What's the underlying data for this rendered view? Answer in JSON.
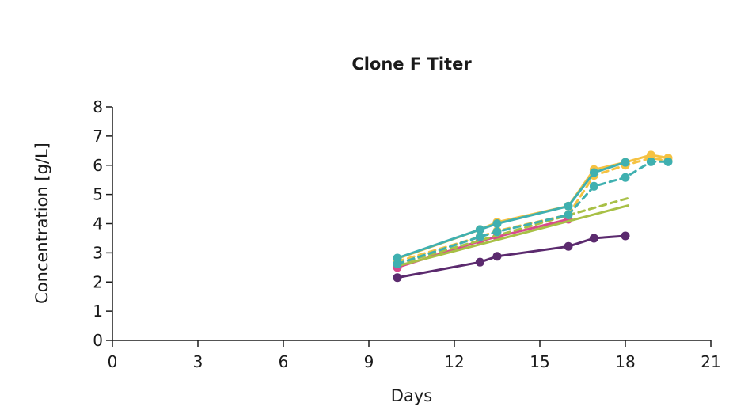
{
  "chart_data": {
    "type": "line",
    "title": "Clone F Titer",
    "xlabel": "Days",
    "ylabel": "Concentration [g/L]",
    "xlim": [
      0,
      21
    ],
    "ylim": [
      0,
      8
    ],
    "xticks": [
      "0",
      "3",
      "6",
      "9",
      "12",
      "15",
      "18",
      "21"
    ],
    "yticks": [
      "0",
      "1",
      "2",
      "3",
      "4",
      "5",
      "6",
      "7",
      "8"
    ],
    "grid": false,
    "legend": "none",
    "series": [
      {
        "color": "#5b2a6e",
        "dash": false,
        "markers": true,
        "x": [
          10,
          12.9,
          13.5,
          16,
          16.9,
          18
        ],
        "y": [
          2.15,
          2.68,
          2.88,
          3.22,
          3.5,
          3.58
        ]
      },
      {
        "color": "#d94a8c",
        "dash": false,
        "markers": true,
        "x": [
          10,
          12.9,
          13.5,
          16
        ],
        "y": [
          2.5,
          3.4,
          3.55,
          4.15
        ]
      },
      {
        "color": "#a8c046",
        "dash": false,
        "markers": false,
        "x": [
          10,
          18.1
        ],
        "y": [
          2.55,
          4.62
        ]
      },
      {
        "color": "#a8c046",
        "dash": true,
        "markers": false,
        "x": [
          10,
          18.2
        ],
        "y": [
          2.62,
          4.9
        ]
      },
      {
        "color": "#f5c242",
        "dash": false,
        "markers": true,
        "x": [
          10,
          12.9,
          13.5,
          16,
          16.9,
          18,
          18.9,
          19.5
        ],
        "y": [
          2.8,
          3.8,
          4.05,
          4.6,
          5.85,
          6.1,
          6.35,
          6.25
        ]
      },
      {
        "color": "#f5c242",
        "dash": true,
        "markers": true,
        "x": [
          10,
          12.9,
          13.5,
          16,
          16.9,
          18,
          18.9,
          19.5
        ],
        "y": [
          2.7,
          3.55,
          3.75,
          4.3,
          5.65,
          6.0,
          6.25,
          6.15
        ]
      },
      {
        "color": "#3fb0b0",
        "dash": false,
        "markers": true,
        "x": [
          10,
          12.9,
          13.5,
          16,
          16.9,
          18
        ],
        "y": [
          2.82,
          3.8,
          4.0,
          4.6,
          5.75,
          6.1
        ]
      },
      {
        "color": "#3fb0b0",
        "dash": true,
        "markers": true,
        "x": [
          10,
          12.9,
          13.5,
          16,
          16.9,
          18,
          18.9,
          19.5
        ],
        "y": [
          2.62,
          3.55,
          3.72,
          4.3,
          5.28,
          5.58,
          6.12,
          6.12
        ]
      }
    ]
  }
}
